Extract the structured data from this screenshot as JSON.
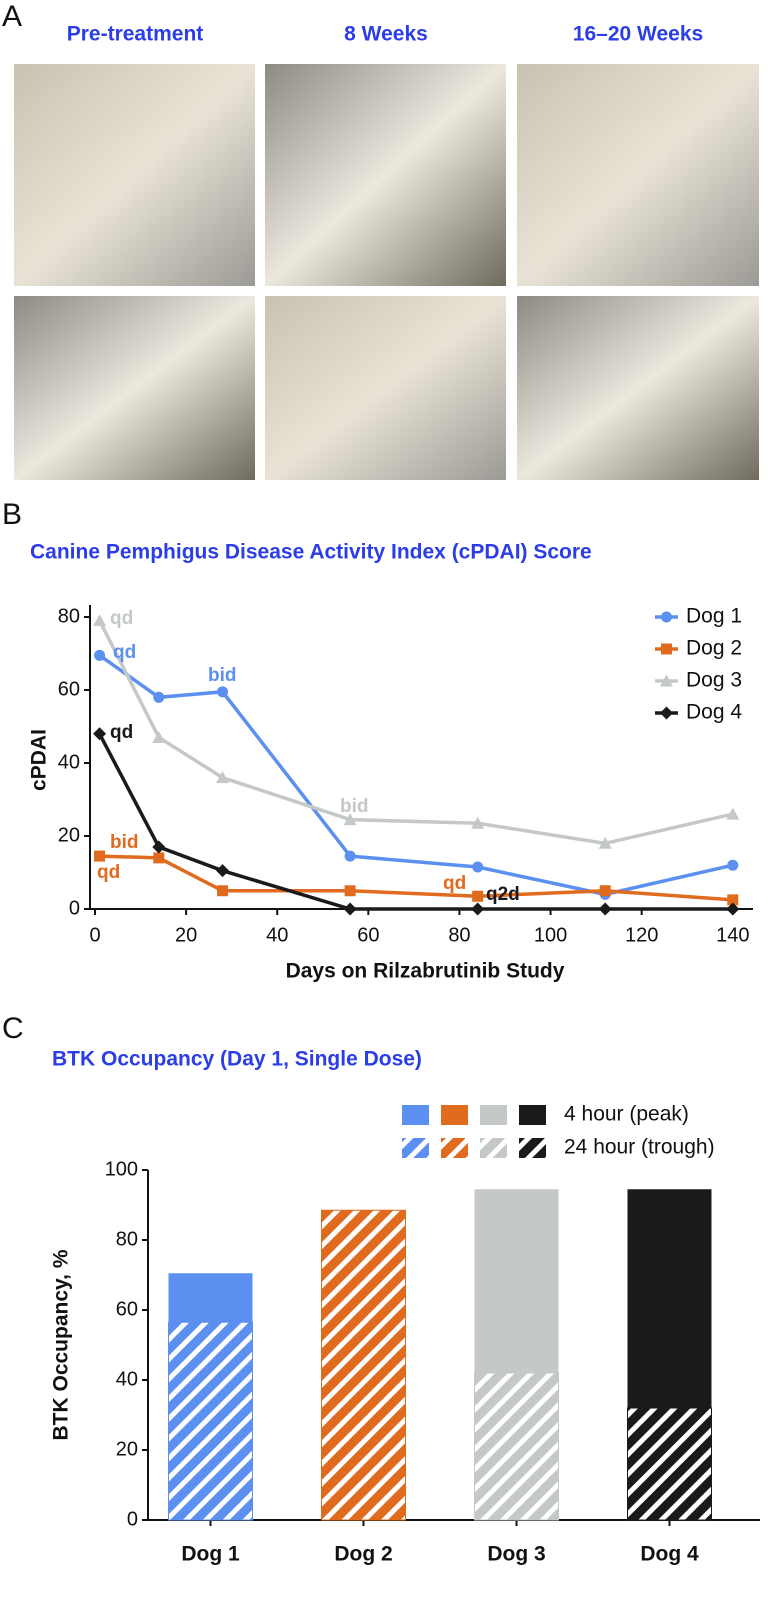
{
  "panel_labels": [
    "A",
    "B",
    "C"
  ],
  "photos": {
    "columns": [
      "Pre-treatment",
      "8 Weeks",
      "16–20 Weeks"
    ]
  },
  "chart_data": [
    {
      "type": "line",
      "title": "Canine Pemphigus Disease Activity Index (cPDAI) Score",
      "x_label": "Days on Rilzabrutinib Study",
      "y_label": "cPDAI",
      "x": [
        1,
        14,
        28,
        56,
        84,
        112,
        140
      ],
      "series": [
        {
          "name": "Dog 1",
          "color": "#5b8ff0",
          "marker": "circle",
          "values": [
            69.5,
            58,
            59.5,
            14.5,
            11.5,
            4,
            12
          ]
        },
        {
          "name": "Dog 2",
          "color": "#e06a1e",
          "marker": "square",
          "values": [
            14.5,
            14,
            5,
            5,
            3.5,
            5,
            2.5
          ]
        },
        {
          "name": "Dog 3",
          "color": "#c4c8c6",
          "marker": "triangle",
          "values": [
            79,
            47,
            36,
            24.5,
            23.5,
            18,
            26
          ]
        },
        {
          "name": "Dog 4",
          "color": "#1a1a1a",
          "marker": "diamond",
          "values": [
            48,
            17,
            10.5,
            0,
            0,
            0,
            0
          ]
        }
      ],
      "xlim": [
        0,
        144
      ],
      "xticks": [
        0,
        20,
        40,
        60,
        80,
        100,
        120,
        140
      ],
      "ylim": [
        0,
        80
      ],
      "yticks": [
        0,
        20,
        40,
        60,
        80
      ],
      "legend": "upper right",
      "annotations": [
        {
          "text": "qd",
          "color": "#c4c8c6"
        },
        {
          "text": "qd",
          "color": "#5b8ff0"
        },
        {
          "text": "bid",
          "color": "#5b8ff0"
        },
        {
          "text": "qd",
          "color": "#1a1a1a"
        },
        {
          "text": "bid",
          "color": "#c4c8c6"
        },
        {
          "text": "bid",
          "color": "#e06a1e"
        },
        {
          "text": "qd",
          "color": "#e06a1e"
        },
        {
          "text": "qd",
          "color": "#e06a1e"
        },
        {
          "text": "q2d",
          "color": "#1a1a1a"
        }
      ]
    },
    {
      "type": "bar",
      "title": "BTK Occupancy (Day 1, Single Dose)",
      "y_label": "BTK Occupancy, %",
      "categories": [
        "Dog 1",
        "Dog 2",
        "Dog 3",
        "Dog 4"
      ],
      "colors": [
        "#5b8ff0",
        "#e06a1e",
        "#c4c8c6",
        "#1a1a1a"
      ],
      "series": [
        {
          "name": "4 hour (peak)",
          "values": [
            70.5,
            88.5,
            94.5,
            94.5
          ]
        },
        {
          "name": "24 hour (trough)",
          "hatch": true,
          "values": [
            56.5,
            88.5,
            42,
            32
          ]
        }
      ],
      "ylim": [
        0,
        100
      ],
      "yticks": [
        0,
        20,
        40,
        60,
        80,
        100
      ],
      "legend": "upper right"
    }
  ]
}
